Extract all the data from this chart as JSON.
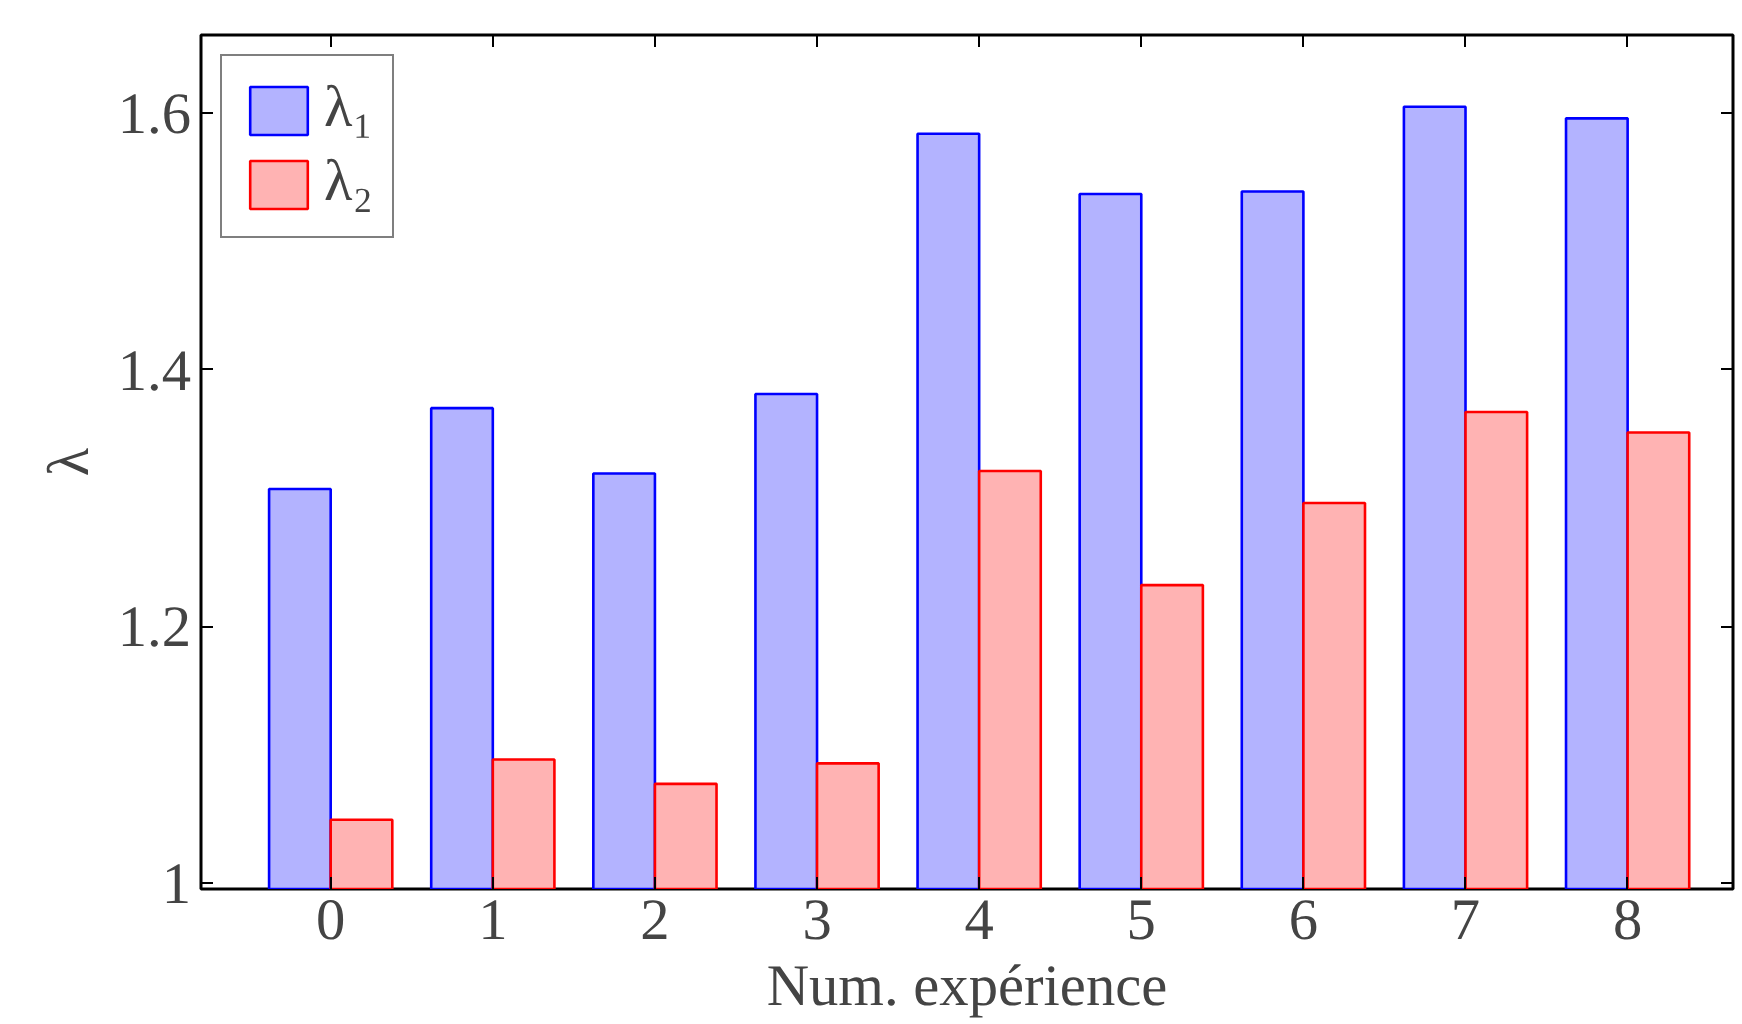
{
  "chart_data": {
    "type": "bar",
    "xlabel": "Num. expérience",
    "ylabel": "λ",
    "x": [
      0,
      1,
      2,
      3,
      4,
      5,
      6,
      7,
      8
    ],
    "series": [
      {
        "name": "λ₁",
        "color": "#b3b3ff",
        "values": [
          1.307,
          1.37,
          1.319,
          1.381,
          1.584,
          1.537,
          1.539,
          1.605,
          1.596
        ]
      },
      {
        "name": "λ₂",
        "color": "#ffb3b3",
        "values": [
          1.049,
          1.096,
          1.077,
          1.093,
          1.321,
          1.232,
          1.296,
          1.367,
          1.351
        ]
      }
    ],
    "xlim": [
      -0.8,
      8.65
    ],
    "ylim": [
      0.995,
      1.661
    ],
    "xticks": [
      0,
      1,
      2,
      3,
      4,
      5,
      6,
      7,
      8
    ],
    "yticks": [
      {
        "value": 1,
        "label": "1"
      },
      1.2,
      1.4,
      1.6
    ],
    "grid": false,
    "legend": "top left"
  }
}
